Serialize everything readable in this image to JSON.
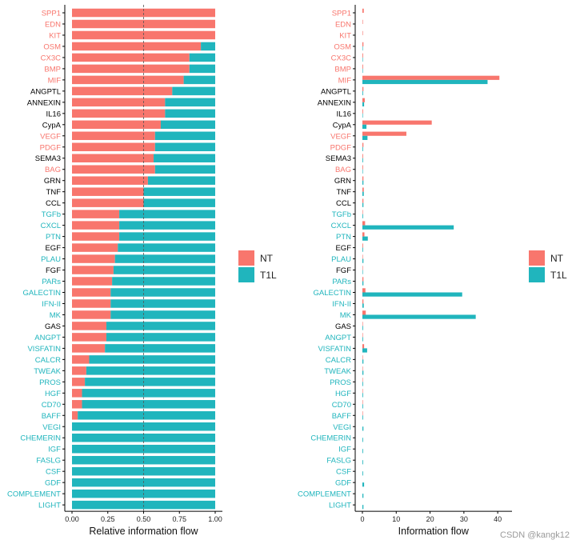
{
  "chart_data": [
    {
      "type": "bar",
      "orientation": "horizontal",
      "stacked": "proportional",
      "title": "",
      "xlabel": "Relative information flow",
      "ylabel": "",
      "xlim": [
        0,
        1
      ],
      "xticks": [
        "0.00",
        "0.25",
        "0.50",
        "0.75",
        "1.00"
      ],
      "reference_line": 0.5,
      "categories": [
        "SPP1",
        "EDN",
        "KIT",
        "OSM",
        "CX3C",
        "BMP",
        "MIF",
        "ANGPTL",
        "ANNEXIN",
        "IL16",
        "CypA",
        "VEGF",
        "PDGF",
        "SEMA3",
        "BAG",
        "GRN",
        "TNF",
        "CCL",
        "TGFb",
        "CXCL",
        "PTN",
        "EGF",
        "PLAU",
        "FGF",
        "PARs",
        "GALECTIN",
        "IFN-II",
        "MK",
        "GAS",
        "ANGPT",
        "VISFATIN",
        "CALCR",
        "TWEAK",
        "PROS",
        "HGF",
        "CD70",
        "BAFF",
        "VEGI",
        "CHEMERIN",
        "IGF",
        "FASLG",
        "CSF",
        "GDF",
        "COMPLEMENT",
        "LIGHT"
      ],
      "label_colors": [
        "NT",
        "NT",
        "NT",
        "NT",
        "NT",
        "NT",
        "NT",
        "shared",
        "shared",
        "shared",
        "shared",
        "NT",
        "NT",
        "shared",
        "NT",
        "shared",
        "shared",
        "shared",
        "T1L",
        "T1L",
        "T1L",
        "shared",
        "T1L",
        "shared",
        "T1L",
        "T1L",
        "T1L",
        "T1L",
        "shared",
        "T1L",
        "T1L",
        "T1L",
        "T1L",
        "T1L",
        "T1L",
        "T1L",
        "T1L",
        "T1L",
        "T1L",
        "T1L",
        "T1L",
        "T1L",
        "T1L",
        "T1L",
        "T1L"
      ],
      "series": [
        {
          "name": "NT",
          "values": [
            1.0,
            1.0,
            1.0,
            0.9,
            0.82,
            0.82,
            0.78,
            0.7,
            0.65,
            0.65,
            0.62,
            0.58,
            0.58,
            0.57,
            0.58,
            0.53,
            0.5,
            0.5,
            0.33,
            0.33,
            0.33,
            0.32,
            0.3,
            0.29,
            0.28,
            0.27,
            0.27,
            0.27,
            0.24,
            0.24,
            0.23,
            0.12,
            0.1,
            0.09,
            0.07,
            0.07,
            0.04,
            0.0,
            0.0,
            0.0,
            0.0,
            0.0,
            0.0,
            0.0,
            0.0
          ]
        },
        {
          "name": "T1L",
          "values": [
            0.0,
            0.0,
            0.0,
            0.1,
            0.18,
            0.18,
            0.22,
            0.3,
            0.35,
            0.35,
            0.38,
            0.42,
            0.42,
            0.43,
            0.42,
            0.47,
            0.5,
            0.5,
            0.67,
            0.67,
            0.67,
            0.68,
            0.7,
            0.71,
            0.72,
            0.73,
            0.73,
            0.73,
            0.76,
            0.76,
            0.77,
            0.88,
            0.9,
            0.91,
            0.93,
            0.93,
            0.96,
            1.0,
            1.0,
            1.0,
            1.0,
            1.0,
            1.0,
            1.0,
            1.0
          ]
        }
      ]
    },
    {
      "type": "bar",
      "orientation": "horizontal",
      "grouped": true,
      "title": "",
      "xlabel": "Information flow",
      "ylabel": "",
      "xlim": [
        0,
        42
      ],
      "xticks": [
        "0",
        "10",
        "20",
        "30",
        "40"
      ],
      "categories": [
        "SPP1",
        "EDN",
        "KIT",
        "OSM",
        "CX3C",
        "BMP",
        "MIF",
        "ANGPTL",
        "ANNEXIN",
        "IL16",
        "CypA",
        "VEGF",
        "PDGF",
        "SEMA3",
        "BAG",
        "GRN",
        "TNF",
        "CCL",
        "TGFb",
        "CXCL",
        "PTN",
        "EGF",
        "PLAU",
        "FGF",
        "PARs",
        "GALECTIN",
        "IFN-II",
        "MK",
        "GAS",
        "ANGPT",
        "VISFATIN",
        "CALCR",
        "TWEAK",
        "PROS",
        "HGF",
        "CD70",
        "BAFF",
        "VEGI",
        "CHEMERIN",
        "IGF",
        "FASLG",
        "CSF",
        "GDF",
        "COMPLEMENT",
        "LIGHT"
      ],
      "series": [
        {
          "name": "NT",
          "values": [
            0.4,
            0.1,
            0.1,
            0.3,
            0.2,
            0.2,
            40.5,
            0.3,
            0.7,
            0.2,
            20.5,
            13.0,
            0.3,
            0.2,
            0.2,
            0.3,
            0.4,
            0.3,
            0.1,
            0.8,
            0.6,
            0.2,
            0.1,
            0.1,
            0.3,
            0.9,
            0.3,
            1.0,
            0.1,
            0.1,
            0.5,
            0.1,
            0.1,
            0.1,
            0.1,
            0.1,
            0.1,
            0.0,
            0.0,
            0.0,
            0.0,
            0.0,
            0.0,
            0.0,
            0.0
          ]
        },
        {
          "name": "T1L",
          "values": [
            0.0,
            0.0,
            0.0,
            0.1,
            0.1,
            0.1,
            37.0,
            0.2,
            0.5,
            0.1,
            1.2,
            1.5,
            0.2,
            0.2,
            0.1,
            0.3,
            0.4,
            0.3,
            0.2,
            27.0,
            1.6,
            0.2,
            0.3,
            0.1,
            0.3,
            29.5,
            0.4,
            33.5,
            0.2,
            0.2,
            1.4,
            0.3,
            0.3,
            0.2,
            0.2,
            0.2,
            0.2,
            0.3,
            0.2,
            0.2,
            0.2,
            0.2,
            0.5,
            0.3,
            0.3
          ]
        }
      ]
    }
  ],
  "legend": {
    "items": [
      {
        "name": "NT",
        "color": "#f8766d"
      },
      {
        "name": "T1L",
        "color": "#20b5bd"
      }
    ]
  },
  "colors": {
    "NT": "#f8766d",
    "T1L": "#20b5bd",
    "shared": "#000000"
  },
  "watermark": "CSDN @kangk12"
}
